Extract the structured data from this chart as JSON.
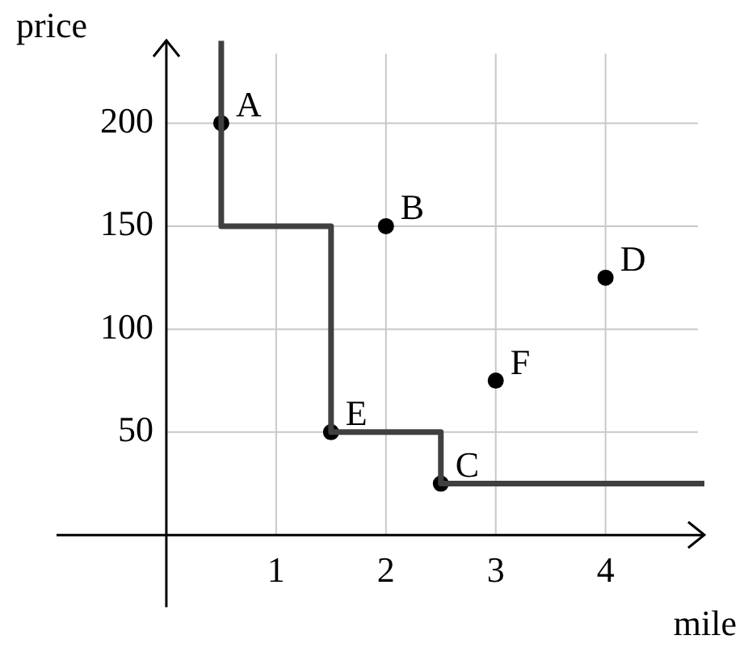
{
  "chart_data": {
    "type": "scatter",
    "xlabel": "mile",
    "ylabel": "price",
    "xlim": [
      -1,
      4.9
    ],
    "ylim": [
      -35,
      240
    ],
    "xticks": [
      1,
      2,
      3,
      4
    ],
    "yticks": [
      50,
      100,
      150,
      200
    ],
    "grid": true,
    "legend": false,
    "marker": "circle",
    "series": [
      {
        "type": "line",
        "color": "#404040",
        "line_style": "solid",
        "marker": "none",
        "x": [
          0.5,
          0.5,
          1.5,
          1.5,
          2.5,
          2.5,
          4.9
        ],
        "values": [
          240,
          150,
          150,
          50,
          50,
          25,
          25
        ]
      },
      {
        "type": "scatter",
        "color": "#000000",
        "x": [
          0.5,
          2,
          2.5,
          4,
          1.5,
          3
        ],
        "values": [
          200,
          150,
          25,
          125,
          50,
          75
        ]
      }
    ],
    "annotations": [
      {
        "text": "A",
        "x": 0.5,
        "y": 200
      },
      {
        "text": "B",
        "x": 2,
        "y": 150
      },
      {
        "text": "C",
        "x": 2.5,
        "y": 25
      },
      {
        "text": "D",
        "x": 4,
        "y": 125
      },
      {
        "text": "E",
        "x": 1.5,
        "y": 50
      },
      {
        "text": "F",
        "x": 3,
        "y": 75
      }
    ]
  }
}
